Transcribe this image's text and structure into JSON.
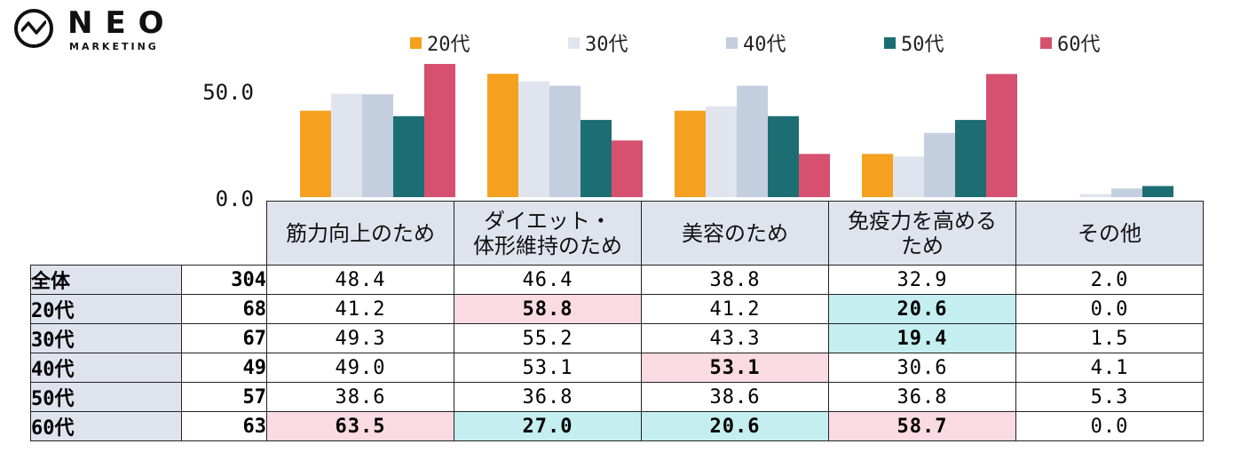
{
  "logo": {
    "name": "NEO",
    "sub": "MARKETING"
  },
  "colors": {
    "series": [
      "#f5a01f",
      "#dfe4ee",
      "#c3cedf",
      "#1d6e73",
      "#d6506f"
    ],
    "header_bg": "#dfe3ee",
    "highlight_high": "#fadbe3",
    "highlight_low": "#c4eef0"
  },
  "chart_data": {
    "type": "bar",
    "categories": [
      "筋力向上のため",
      "ダイエット・体形維持のため",
      "美容のため",
      "免疫力を高めるため",
      "その他"
    ],
    "category_labels": [
      [
        "筋力向上のため"
      ],
      [
        "ダイエット・",
        "体形維持のため"
      ],
      [
        "美容のため"
      ],
      [
        "免疫力を高める",
        "ため"
      ],
      [
        "その他"
      ]
    ],
    "series": [
      {
        "name": "20代",
        "values": [
          41.2,
          58.8,
          41.2,
          20.6,
          0.0
        ]
      },
      {
        "name": "30代",
        "values": [
          49.3,
          55.2,
          43.3,
          19.4,
          1.5
        ]
      },
      {
        "name": "40代",
        "values": [
          49.0,
          53.1,
          53.1,
          30.6,
          4.1
        ]
      },
      {
        "name": "50代",
        "values": [
          38.6,
          36.8,
          38.6,
          36.8,
          5.3
        ]
      },
      {
        "name": "60代",
        "values": [
          63.5,
          27.0,
          20.6,
          58.7,
          0.0
        ]
      }
    ],
    "yticks": [
      "50.0",
      "0.0"
    ],
    "ylim": [
      0,
      65
    ],
    "legend_position": "top"
  },
  "table": {
    "rows": [
      {
        "label": "全体",
        "n": "304",
        "values": [
          "48.4",
          "46.4",
          "38.8",
          "32.9",
          "2.0"
        ],
        "marks": [
          "",
          "",
          "",
          "",
          ""
        ]
      },
      {
        "label": "20代",
        "n": "68",
        "values": [
          "41.2",
          "58.8",
          "41.2",
          "20.6",
          "0.0"
        ],
        "marks": [
          "",
          "hi",
          "",
          "lo",
          ""
        ]
      },
      {
        "label": "30代",
        "n": "67",
        "values": [
          "49.3",
          "55.2",
          "43.3",
          "19.4",
          "1.5"
        ],
        "marks": [
          "",
          "",
          "",
          "lo",
          ""
        ]
      },
      {
        "label": "40代",
        "n": "49",
        "values": [
          "49.0",
          "53.1",
          "53.1",
          "30.6",
          "4.1"
        ],
        "marks": [
          "",
          "",
          "hi",
          "",
          ""
        ]
      },
      {
        "label": "50代",
        "n": "57",
        "values": [
          "38.6",
          "36.8",
          "38.6",
          "36.8",
          "5.3"
        ],
        "marks": [
          "",
          "",
          "",
          "",
          ""
        ]
      },
      {
        "label": "60代",
        "n": "63",
        "values": [
          "63.5",
          "27.0",
          "20.6",
          "58.7",
          "0.0"
        ],
        "marks": [
          "hi",
          "lo",
          "lo",
          "hi",
          ""
        ]
      }
    ]
  }
}
